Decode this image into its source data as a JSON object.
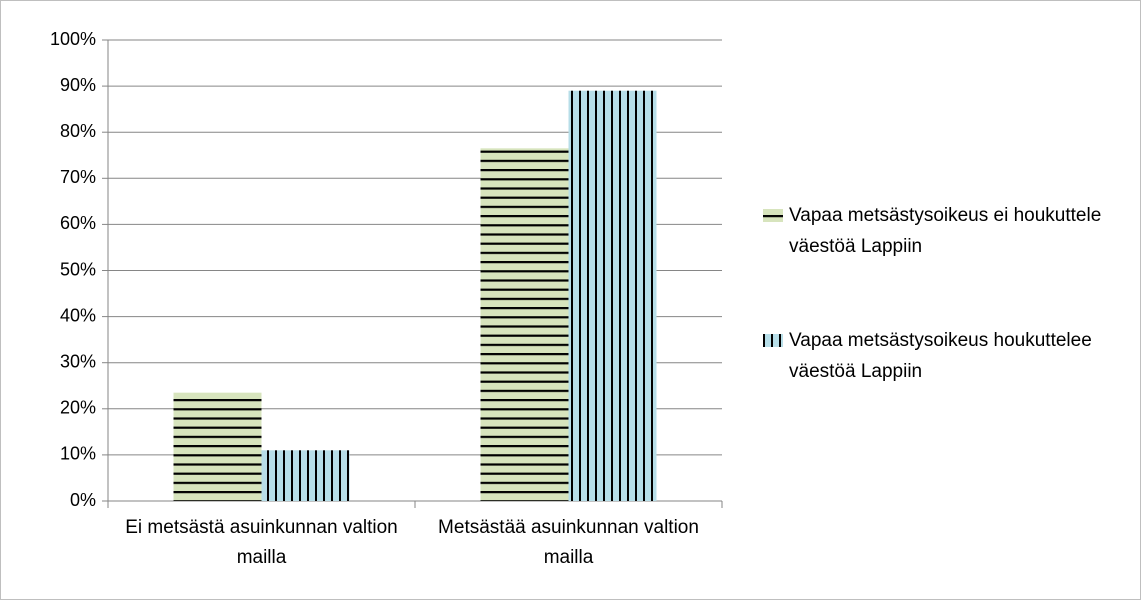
{
  "chart_data": {
    "type": "bar",
    "categories": [
      "Ei metsästä asuinkunnan valtion mailla",
      "Metsästää asuinkunnan valtion mailla"
    ],
    "series": [
      {
        "name": "Vapaa metsästysoikeus ei houkuttele väestöä Lappiin",
        "color": "#d7e4bd",
        "values": [
          23.5,
          76.5
        ]
      },
      {
        "name": "Vapaa metsästysoikeus houkuttelee väestöä Lappiin",
        "color": "#b7dee8",
        "values": [
          11,
          89
        ]
      }
    ],
    "ylim": [
      0,
      100
    ],
    "yticks": [
      {
        "value": 0,
        "label": "0%"
      },
      {
        "value": 10,
        "label": "10%"
      },
      {
        "value": 20,
        "label": "20%"
      },
      {
        "value": 30,
        "label": "30%"
      },
      {
        "value": 40,
        "label": "40%"
      },
      {
        "value": 50,
        "label": "50%"
      },
      {
        "value": 60,
        "label": "60%"
      },
      {
        "value": 70,
        "label": "70%"
      },
      {
        "value": 80,
        "label": "80%"
      },
      {
        "value": 90,
        "label": "90%"
      },
      {
        "value": 100,
        "label": "100%"
      }
    ],
    "grid": true,
    "legend": "right"
  }
}
